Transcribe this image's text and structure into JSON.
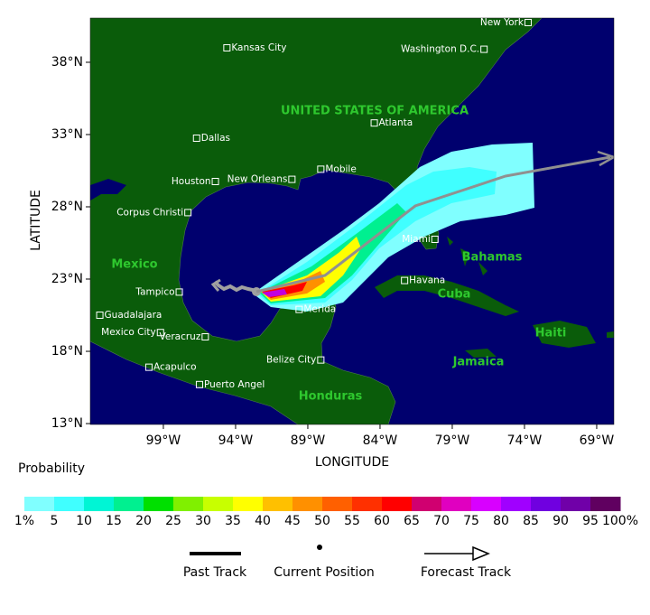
{
  "map": {
    "xlim": [
      -104.06,
      -67.81
    ],
    "ylim": [
      12.94,
      41.06
    ],
    "xticks": [
      {
        "value": -99,
        "label": "99°W"
      },
      {
        "value": -94,
        "label": "94°W"
      },
      {
        "value": -89,
        "label": "89°W"
      },
      {
        "value": -84,
        "label": "84°W"
      },
      {
        "value": -79,
        "label": "79°W"
      },
      {
        "value": -74,
        "label": "74°W"
      },
      {
        "value": -69,
        "label": "69°W"
      }
    ],
    "yticks": [
      {
        "value": 38,
        "label": "38°N"
      },
      {
        "value": 33,
        "label": "33°N"
      },
      {
        "value": 28,
        "label": "28°N"
      },
      {
        "value": 23,
        "label": "23°N"
      },
      {
        "value": 18,
        "label": "18°N"
      },
      {
        "value": 13,
        "label": "13°N"
      }
    ],
    "xlabel": "LONGITUDE",
    "ylabel": "LATITUDE",
    "cities": [
      {
        "name": "New York",
        "lon": -73.75,
        "lat": 40.75
      },
      {
        "name": "Washington D.C.",
        "lon": -76.8,
        "lat": 38.9
      },
      {
        "name": "Kansas City",
        "lon": -94.6,
        "lat": 39.0
      },
      {
        "name": "Atlanta",
        "lon": -84.4,
        "lat": 33.8
      },
      {
        "name": "Dallas",
        "lon": -96.7,
        "lat": 32.75
      },
      {
        "name": "Mobile",
        "lon": -88.1,
        "lat": 30.6
      },
      {
        "name": "New Orleans",
        "lon": -90.1,
        "lat": 29.9
      },
      {
        "name": "Houston",
        "lon": -95.4,
        "lat": 29.75
      },
      {
        "name": "Corpus Christi",
        "lon": -97.3,
        "lat": 27.6
      },
      {
        "name": "Miami",
        "lon": -80.2,
        "lat": 25.75
      },
      {
        "name": "Havana",
        "lon": -82.3,
        "lat": 22.9
      },
      {
        "name": "Tampico",
        "lon": -97.9,
        "lat": 22.1
      },
      {
        "name": "Merida",
        "lon": -89.6,
        "lat": 20.9
      },
      {
        "name": "Guadalajara",
        "lon": -103.4,
        "lat": 20.5
      },
      {
        "name": "Mexico City",
        "lon": -99.2,
        "lat": 19.3
      },
      {
        "name": "Veracruz",
        "lon": -96.1,
        "lat": 19.0
      },
      {
        "name": "Acapulco",
        "lon": -100.0,
        "lat": 16.9
      },
      {
        "name": "Belize City",
        "lon": -88.1,
        "lat": 17.4
      },
      {
        "name": "Puerto Angel",
        "lon": -96.5,
        "lat": 15.7
      }
    ],
    "regions": [
      "UNITED STATES OF AMERICA",
      "Mexico",
      "Bahamas",
      "Cuba",
      "Haiti",
      "Jamaica",
      "Honduras"
    ]
  },
  "legend": {
    "probability": {
      "title": "Probability",
      "ticks": [
        {
          "value": 1,
          "label": "1%"
        },
        5,
        10,
        15,
        20,
        25,
        30,
        35,
        40,
        45,
        50,
        55,
        60,
        65,
        70,
        75,
        80,
        85,
        90,
        95,
        {
          "value": 100,
          "label": "100%"
        }
      ],
      "colors": [
        "#80ffff",
        "#40ffff",
        "#00f5d5",
        "#00f090",
        "#00e000",
        "#80f000",
        "#c8ff00",
        "#ffff00",
        "#ffc000",
        "#ff9000",
        "#ff6000",
        "#ff3000",
        "#ff0000",
        "#d00070",
        "#e000c0",
        "#d800ff",
        "#a000ff",
        "#7000e0",
        "#7000a8",
        "#600060"
      ]
    },
    "items": [
      "Past Track",
      "Current Position",
      "Forecast Track"
    ]
  }
}
